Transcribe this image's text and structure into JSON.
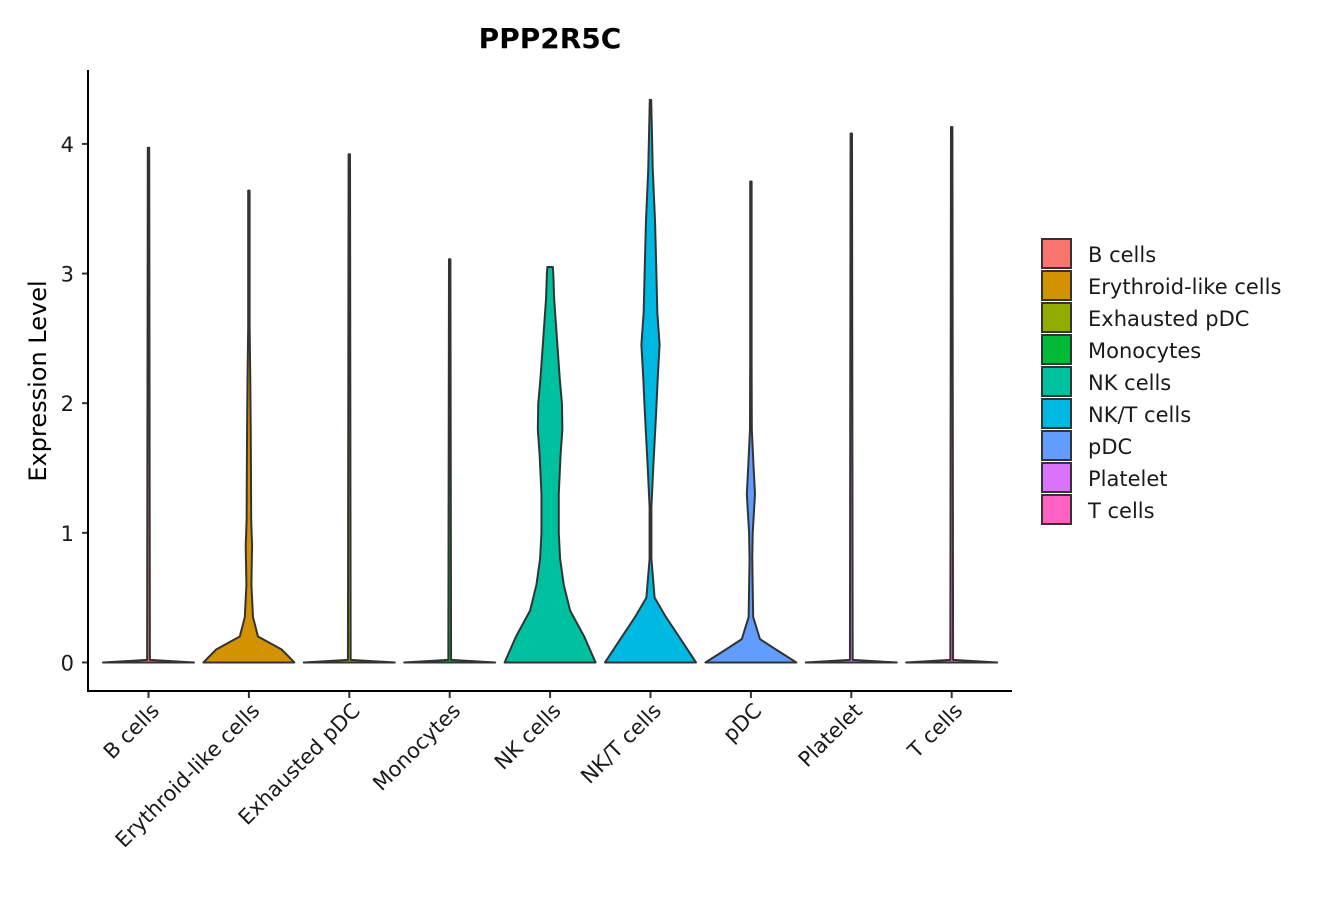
{
  "chart_data": {
    "type": "violin",
    "title": "PPP2R5C",
    "xlabel": "",
    "ylabel": "Expression Level",
    "ylim": [
      -0.22,
      4.57
    ],
    "yticks": [
      "0",
      "1",
      "2",
      "3",
      "4"
    ],
    "categories": [
      "B cells",
      "Erythroid-like cells",
      "Exhausted pDC",
      "Monocytes",
      "NK cells",
      "NK/T cells",
      "pDC",
      "Platelet",
      "T cells"
    ],
    "colors": [
      "#F8766D",
      "#D39200",
      "#93AA00",
      "#00BA38",
      "#00C19F",
      "#00B9E3",
      "#619CFF",
      "#DB72FB",
      "#FF61C3"
    ],
    "series": [
      {
        "name": "B cells",
        "max": 3.97,
        "profile": [
          [
            0,
            1.0
          ],
          [
            0.02,
            0.03
          ],
          [
            3.97,
            0.012
          ]
        ]
      },
      {
        "name": "Erythroid-like cells",
        "max": 3.64,
        "profile": [
          [
            0,
            1.0
          ],
          [
            0.1,
            0.72
          ],
          [
            0.2,
            0.2
          ],
          [
            0.35,
            0.09
          ],
          [
            0.6,
            0.055
          ],
          [
            0.9,
            0.07
          ],
          [
            1.1,
            0.05
          ],
          [
            1.5,
            0.045
          ],
          [
            1.8,
            0.04
          ],
          [
            2.2,
            0.03
          ],
          [
            2.6,
            0.01
          ],
          [
            3.64,
            0.005
          ]
        ]
      },
      {
        "name": "Exhausted pDC",
        "max": 3.92,
        "profile": [
          [
            0,
            1.0
          ],
          [
            0.02,
            0.03
          ],
          [
            3.92,
            0.012
          ]
        ]
      },
      {
        "name": "Monocytes",
        "max": 3.11,
        "profile": [
          [
            0,
            1.0
          ],
          [
            0.02,
            0.03
          ],
          [
            3.11,
            0.012
          ]
        ]
      },
      {
        "name": "NK cells",
        "max": 3.05,
        "profile": [
          [
            0,
            1.0
          ],
          [
            0.2,
            0.75
          ],
          [
            0.4,
            0.44
          ],
          [
            0.6,
            0.3
          ],
          [
            0.8,
            0.22
          ],
          [
            1.0,
            0.19
          ],
          [
            1.3,
            0.19
          ],
          [
            1.6,
            0.23
          ],
          [
            1.8,
            0.27
          ],
          [
            2.0,
            0.26
          ],
          [
            2.2,
            0.21
          ],
          [
            2.5,
            0.15
          ],
          [
            2.8,
            0.09
          ],
          [
            3.0,
            0.07
          ],
          [
            3.05,
            0.06
          ]
        ]
      },
      {
        "name": "NK/T cells",
        "max": 4.34,
        "profile": [
          [
            0,
            1.0
          ],
          [
            0.15,
            0.72
          ],
          [
            0.35,
            0.34
          ],
          [
            0.5,
            0.09
          ],
          [
            0.8,
            0.02
          ],
          [
            1.2,
            0.02
          ],
          [
            1.5,
            0.06
          ],
          [
            1.9,
            0.12
          ],
          [
            2.2,
            0.16
          ],
          [
            2.45,
            0.2
          ],
          [
            2.7,
            0.15
          ],
          [
            3.0,
            0.13
          ],
          [
            3.4,
            0.1
          ],
          [
            3.8,
            0.05
          ],
          [
            4.34,
            0.005
          ]
        ]
      },
      {
        "name": "pDC",
        "max": 3.71,
        "profile": [
          [
            0,
            1.0
          ],
          [
            0.1,
            0.55
          ],
          [
            0.18,
            0.2
          ],
          [
            0.35,
            0.05
          ],
          [
            0.8,
            0.03
          ],
          [
            1.0,
            0.04
          ],
          [
            1.3,
            0.09
          ],
          [
            1.5,
            0.06
          ],
          [
            1.8,
            0.02
          ],
          [
            2.3,
            0.015
          ],
          [
            3.71,
            0.005
          ]
        ]
      },
      {
        "name": "Platelet",
        "max": 4.08,
        "profile": [
          [
            0,
            1.0
          ],
          [
            0.02,
            0.03
          ],
          [
            4.08,
            0.012
          ]
        ]
      },
      {
        "name": "T cells",
        "max": 4.13,
        "profile": [
          [
            0,
            1.0
          ],
          [
            0.02,
            0.03
          ],
          [
            4.13,
            0.012
          ]
        ]
      }
    ],
    "legend": {
      "position": "right",
      "entries": [
        "B cells",
        "Erythroid-like cells",
        "Exhausted pDC",
        "Monocytes",
        "NK cells",
        "NK/T cells",
        "pDC",
        "Platelet",
        "T cells"
      ]
    },
    "grid": false
  }
}
